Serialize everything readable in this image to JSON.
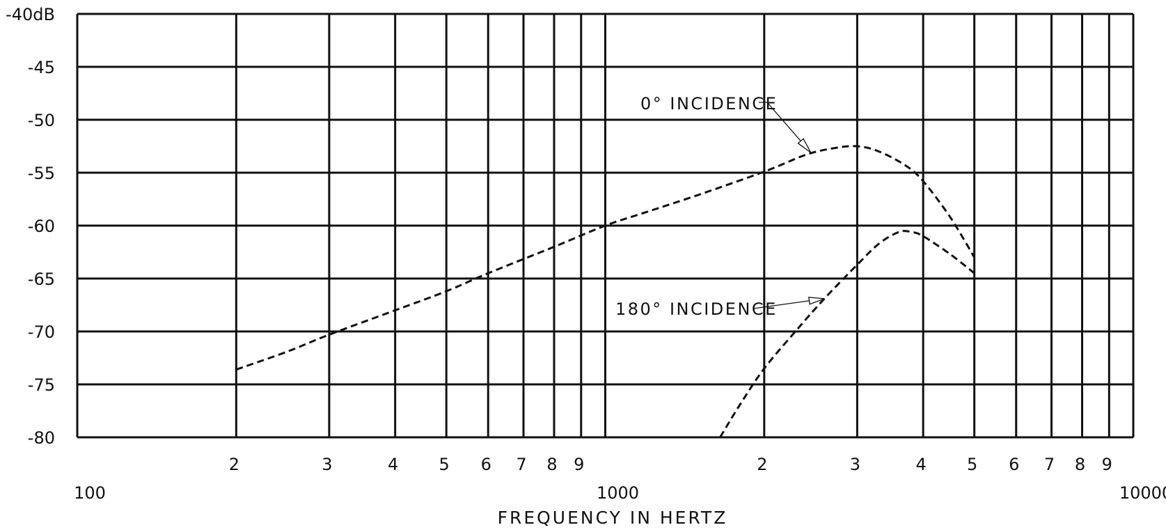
{
  "chart_data": {
    "type": "line",
    "x_scale": "log",
    "xlim": [
      100,
      10000
    ],
    "ylim": [
      -80,
      -40
    ],
    "xlabel": "FREQUENCY IN HERTZ",
    "ylabel": "",
    "y_ticks": [
      {
        "value": -40,
        "label": "-40dB"
      },
      {
        "value": -45,
        "label": "-45"
      },
      {
        "value": -50,
        "label": "-50"
      },
      {
        "value": -55,
        "label": "-55"
      },
      {
        "value": -60,
        "label": "-60"
      },
      {
        "value": -65,
        "label": "-65"
      },
      {
        "value": -70,
        "label": "-70"
      },
      {
        "value": -75,
        "label": "-75"
      },
      {
        "value": -80,
        "label": "-80"
      }
    ],
    "x_minor_ticks": [
      {
        "value": 200,
        "label": "2"
      },
      {
        "value": 300,
        "label": "3"
      },
      {
        "value": 400,
        "label": "4"
      },
      {
        "value": 500,
        "label": "5"
      },
      {
        "value": 600,
        "label": "6"
      },
      {
        "value": 700,
        "label": "7"
      },
      {
        "value": 800,
        "label": "8"
      },
      {
        "value": 900,
        "label": "9"
      },
      {
        "value": 2000,
        "label": "2"
      },
      {
        "value": 3000,
        "label": "3"
      },
      {
        "value": 4000,
        "label": "4"
      },
      {
        "value": 5000,
        "label": "5"
      },
      {
        "value": 6000,
        "label": "6"
      },
      {
        "value": 7000,
        "label": "7"
      },
      {
        "value": 8000,
        "label": "8"
      },
      {
        "value": 9000,
        "label": "9"
      }
    ],
    "x_decade_labels": [
      {
        "value": 100,
        "label": "100"
      },
      {
        "value": 1000,
        "label": "1000"
      },
      {
        "value": 10000,
        "label": "10000"
      }
    ],
    "grid": true,
    "series": [
      {
        "name": "0° INCIDENCE",
        "x": [
          200,
          250,
          300,
          400,
          500,
          600,
          800,
          1000,
          1200,
          1500,
          2000,
          2400,
          2700,
          3000,
          3300,
          3700,
          4000,
          4500,
          5000
        ],
        "y": [
          -73.6,
          -71.9,
          -70.3,
          -68.0,
          -66.2,
          -64.5,
          -62.0,
          -60.0,
          -58.7,
          -57.1,
          -54.9,
          -53.3,
          -52.7,
          -52.5,
          -53.0,
          -54.3,
          -55.8,
          -59.2,
          -63.0
        ]
      },
      {
        "name": "180° INCIDENCE",
        "x": [
          1650,
          1800,
          2000,
          2300,
          2600,
          3000,
          3300,
          3600,
          3800,
          4000,
          4500,
          5000
        ],
        "y": [
          -80.0,
          -76.9,
          -73.5,
          -69.9,
          -66.9,
          -63.7,
          -61.7,
          -60.6,
          -60.6,
          -61.0,
          -62.7,
          -64.5
        ]
      }
    ],
    "annotations": [
      {
        "text": "0° INCIDENCE",
        "target_x": 2450,
        "target_y": -53.1
      },
      {
        "text": "180° INCIDENCE",
        "target_x": 2600,
        "target_y": -66.9
      }
    ]
  }
}
